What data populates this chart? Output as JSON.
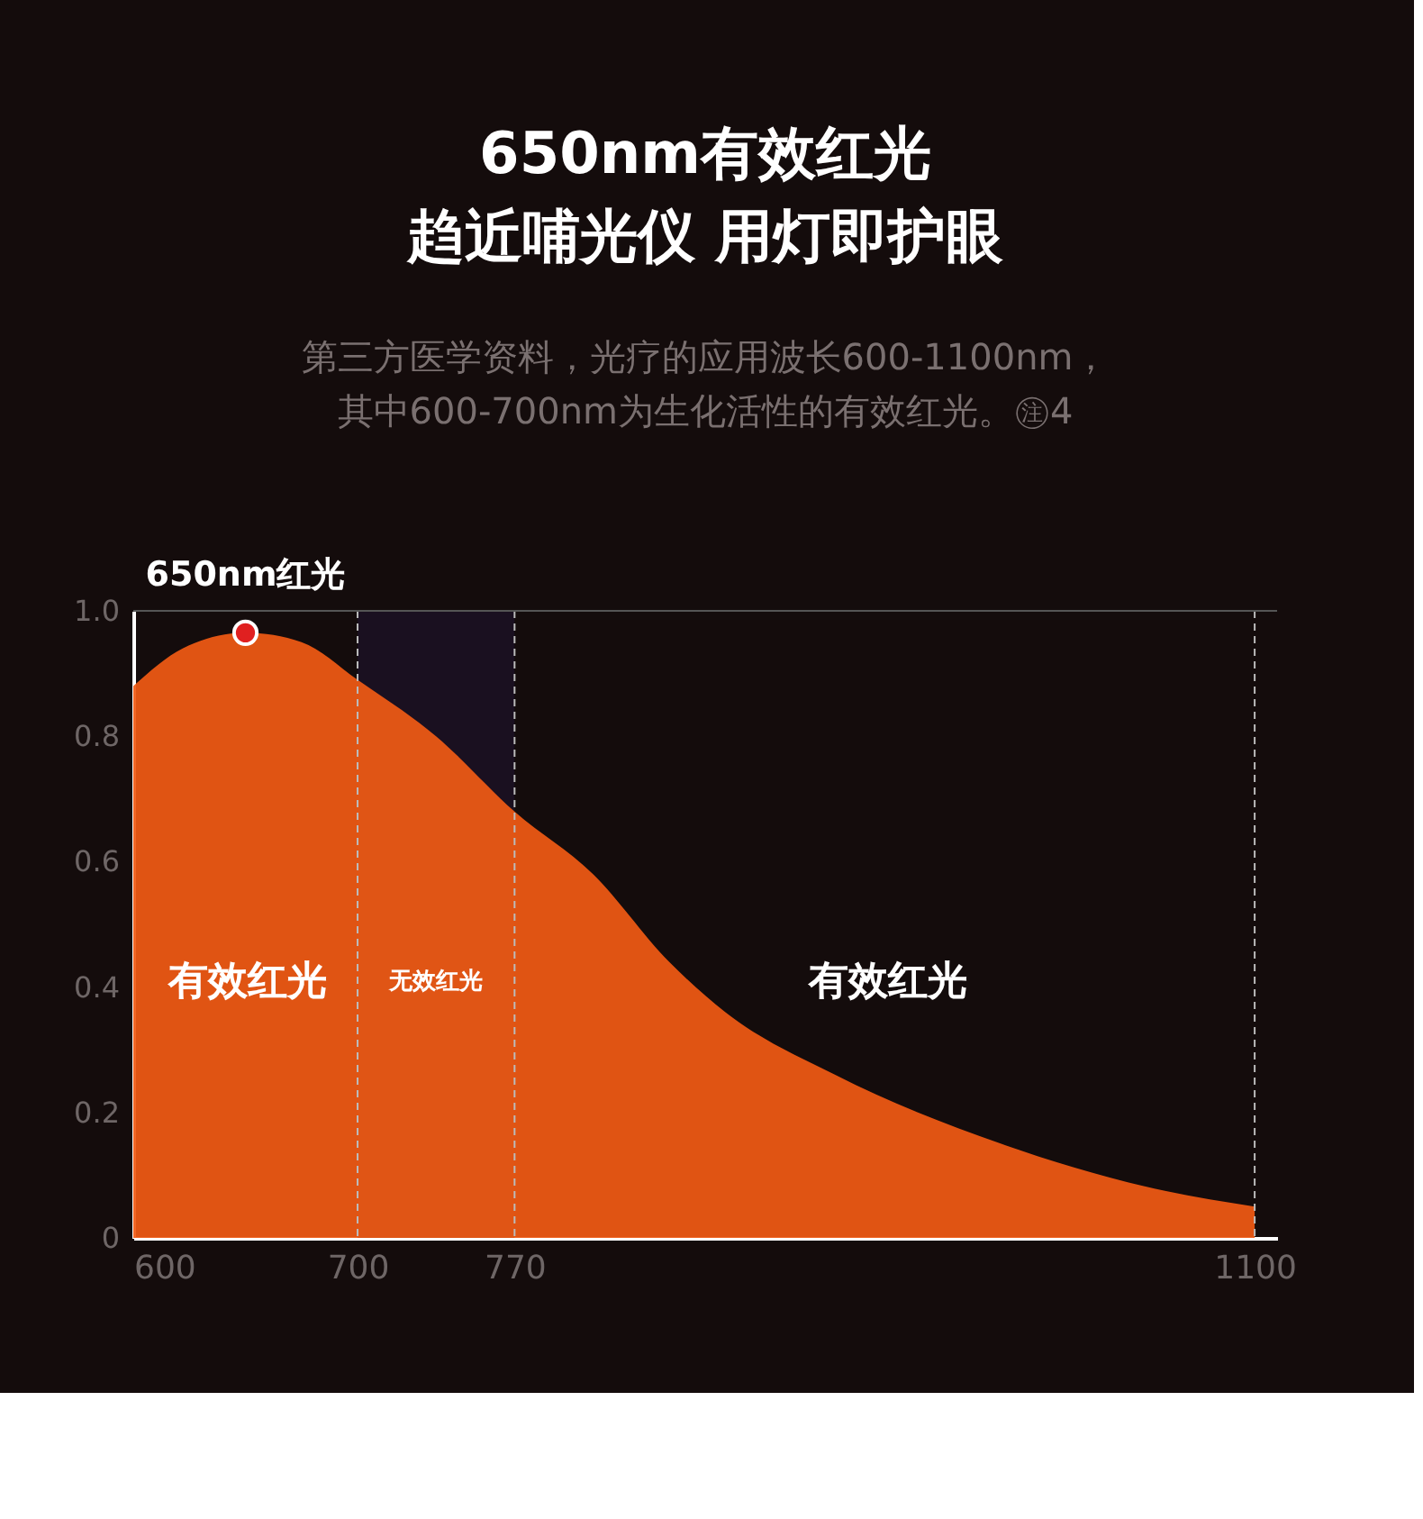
{
  "chart_data": {
    "type": "area",
    "title": "650nm有效红光",
    "subtitle": "趋近哺光仪 用灯即护眼",
    "xlim": [
      600,
      1110
    ],
    "ylim": [
      0,
      1
    ],
    "xticks": [
      600,
      700,
      770,
      1100
    ],
    "yticks": [
      0,
      0.2,
      0.4,
      0.6,
      0.8,
      {
        "value": 1,
        "label": "1.0"
      }
    ],
    "series": [
      {
        "color": "#f05a14",
        "x": [
          600,
          622,
          650,
          675,
          700,
          735,
          770,
          805,
          839,
          864,
          913,
          987,
          1060,
          1100
        ],
        "values": [
          0.88,
          0.94,
          0.965,
          0.95,
          0.89,
          0.8,
          0.68,
          0.58,
          0.44,
          0.36,
          0.26,
          0.15,
          0.075,
          0.05
        ]
      },
      {
        "type": "scatter",
        "color": "#e02020",
        "marker": "circle",
        "x": [
          650
        ],
        "values": [
          0.965
        ]
      }
    ],
    "bands": [
      {
        "axis": "x",
        "from": 700,
        "to": 770,
        "label": "无效红光",
        "color": "#1a1020"
      }
    ],
    "ref_lines": [
      {
        "axis": "x",
        "value": 700,
        "line_style": "dashed",
        "color": "#bbbbbb"
      },
      {
        "axis": "x",
        "value": 770,
        "line_style": "dashed",
        "color": "#bbbbbb"
      },
      {
        "axis": "x",
        "value": 1100,
        "line_style": "dashed",
        "color": "#bbbbbb"
      },
      {
        "axis": "y",
        "value": 1,
        "line_style": "solid",
        "color": "#555555"
      }
    ],
    "annotations": [
      "第三方医学资料，光疗的应用波长600-1100nm，",
      "其中600-700nm为生化活性的有效红光。㊟4",
      {
        "text": "650nm红光",
        "x": 650,
        "y": 0.965
      },
      "有效红光",
      "有效红光"
    ]
  }
}
